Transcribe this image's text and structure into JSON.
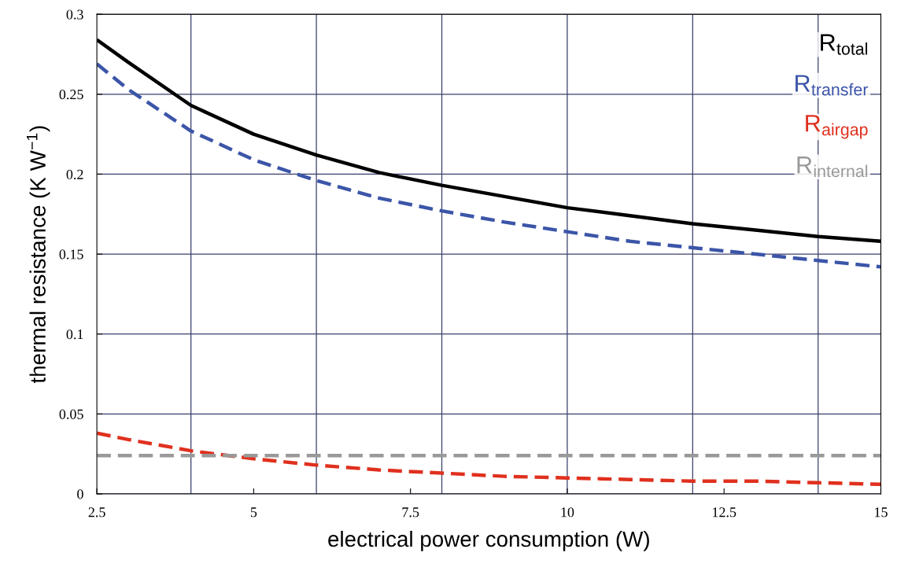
{
  "chart_data": {
    "type": "line",
    "xlabel": "electrical power consumption (W)",
    "ylabel": "thermal resistance (K W$^{−1}$)",
    "x": [
      2.5,
      3,
      4,
      5,
      6,
      7,
      8,
      9,
      10,
      11,
      12,
      13,
      14,
      15
    ],
    "series": [
      {
        "name": "R$_{total}$",
        "color": "#000000",
        "line_style": "solid",
        "values": [
          0.284,
          0.27,
          0.243,
          0.225,
          0.212,
          0.201,
          0.193,
          0.186,
          0.179,
          0.174,
          0.169,
          0.165,
          0.161,
          0.158
        ]
      },
      {
        "name": "R$_{transfer}$",
        "color": "#3b55a8",
        "line_style": "dashed",
        "values": [
          0.269,
          0.253,
          0.227,
          0.209,
          0.196,
          0.185,
          0.177,
          0.17,
          0.164,
          0.158,
          0.154,
          0.15,
          0.146,
          0.142
        ]
      },
      {
        "name": "R$_{airgap}$",
        "color": "#e0301e",
        "line_style": "dashed",
        "values": [
          0.038,
          0.034,
          0.027,
          0.022,
          0.018,
          0.015,
          0.013,
          0.011,
          0.01,
          0.009,
          0.008,
          0.008,
          0.007,
          0.006
        ]
      },
      {
        "name": "R$_{internal}$",
        "color": "#999999",
        "line_style": "dashed",
        "values": [
          0.024,
          0.024,
          0.024,
          0.024,
          0.024,
          0.024,
          0.024,
          0.024,
          0.024,
          0.024,
          0.024,
          0.024,
          0.024,
          0.024
        ]
      }
    ],
    "xlim": [
      2.5,
      15
    ],
    "xticks": [
      2.5,
      5,
      7.5,
      10,
      12.5,
      15
    ],
    "ylim": [
      0,
      0.3
    ],
    "yticks": [
      0,
      0.05,
      0.1,
      0.15,
      0.2,
      0.25,
      0.3
    ],
    "grid": "y",
    "legend": "top right",
    "marker": "none",
    "ref_lines": [
      {
        "axis": "x",
        "value": 4,
        "color": "#3a3f6b",
        "line_style": "solid"
      },
      {
        "axis": "x",
        "value": 6,
        "color": "#3a3f6b",
        "line_style": "solid"
      },
      {
        "axis": "x",
        "value": 8,
        "color": "#3a3f6b",
        "line_style": "solid"
      },
      {
        "axis": "x",
        "value": 10,
        "color": "#3a3f6b",
        "line_style": "solid"
      },
      {
        "axis": "x",
        "value": 12,
        "color": "#3a3f6b",
        "line_style": "solid"
      },
      {
        "axis": "x",
        "value": 14,
        "color": "#3a3f6b",
        "line_style": "solid"
      }
    ]
  }
}
